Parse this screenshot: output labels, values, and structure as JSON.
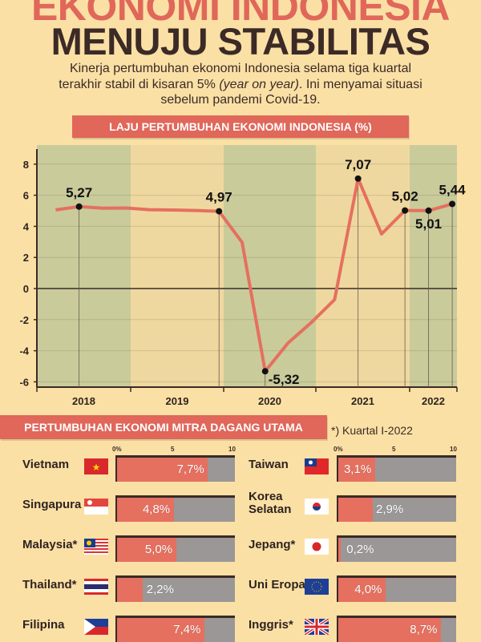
{
  "header": {
    "title_line1": "EKONOMI INDONESIA",
    "title_line2": "MENUJU STABILITAS",
    "subtitle_pre": "Kinerja pertumbuhan ekonomi Indonesia selama tiga kuartal terakhir stabil di kisaran 5% ",
    "subtitle_italic": "(year on year)",
    "subtitle_post": ". Ini menyamai situasi sebelum pandemi Covid-19."
  },
  "colors": {
    "background": "#fbe0a5",
    "accent": "#e0675a",
    "dark": "#3b2a26",
    "band_green": "#c9cb9b",
    "band_beige": "#efd89f",
    "bar_rest": "#9a9796"
  },
  "chart_data": {
    "type": "line",
    "title": "LAJU PERTUMBUHAN EKONOMI INDONESIA (%)",
    "years": [
      "2018",
      "2019",
      "2020",
      "2021",
      "2022"
    ],
    "quarters_per_year": [
      4,
      4,
      4,
      4,
      2
    ],
    "x": [
      "2018-Q1",
      "2018-Q2",
      "2018-Q3",
      "2018-Q4",
      "2019-Q1",
      "2019-Q2",
      "2019-Q3",
      "2019-Q4",
      "2020-Q1",
      "2020-Q2",
      "2020-Q3",
      "2020-Q4",
      "2021-Q1",
      "2021-Q2",
      "2021-Q3",
      "2021-Q4",
      "2022-Q1",
      "2022-Q2"
    ],
    "values": [
      5.06,
      5.27,
      5.17,
      5.18,
      5.07,
      5.05,
      5.02,
      4.97,
      2.97,
      -5.32,
      -3.49,
      -2.19,
      -0.71,
      7.07,
      3.51,
      5.02,
      5.01,
      5.44
    ],
    "labeled_points": [
      {
        "x": "2018-Q2",
        "label": "5,27",
        "pos": "above"
      },
      {
        "x": "2019-Q4",
        "label": "4,97",
        "pos": "above"
      },
      {
        "x": "2020-Q2",
        "label": "-5,32",
        "pos": "below-right"
      },
      {
        "x": "2021-Q2",
        "label": "7,07",
        "pos": "above"
      },
      {
        "x": "2021-Q4",
        "label": "5,02",
        "pos": "above"
      },
      {
        "x": "2022-Q1",
        "label": "5,01",
        "pos": "below"
      },
      {
        "x": "2022-Q2",
        "label": "5,44",
        "pos": "above"
      }
    ],
    "yticks": [
      8,
      6,
      4,
      2,
      0,
      -2,
      -4,
      -6
    ],
    "ylim": [
      -6.2,
      8.8
    ],
    "grid": true,
    "line_color": "#e5705f"
  },
  "partners": {
    "title": "PERTUMBUHAN EKONOMI MITRA DAGANG UTAMA",
    "note": "*) Kuartal I-2022",
    "scale": [
      "0%",
      "5",
      "10"
    ],
    "max": 10,
    "left": [
      {
        "name": "Vietnam",
        "value": 7.7,
        "label": "7,7%",
        "flag": "vn"
      },
      {
        "name": "Singapura",
        "value": 4.8,
        "label": "4,8%",
        "flag": "sg"
      },
      {
        "name": "Malaysia*",
        "value": 5.0,
        "label": "5,0%",
        "flag": "my"
      },
      {
        "name": "Thailand*",
        "value": 2.2,
        "label": "2,2%",
        "flag": "th"
      },
      {
        "name": "Filipina",
        "value": 7.4,
        "label": "7,4%",
        "flag": "ph"
      }
    ],
    "right": [
      {
        "name": "Taiwan",
        "value": 3.1,
        "label": "3,1%",
        "flag": "tw"
      },
      {
        "name": "Korea Selatan",
        "value": 2.9,
        "label": "2,9%",
        "flag": "kr"
      },
      {
        "name": "Jepang*",
        "value": 0.2,
        "label": "0,2%",
        "flag": "jp"
      },
      {
        "name": "Uni Eropa",
        "value": 4.0,
        "label": "4,0%",
        "flag": "eu"
      },
      {
        "name": "Inggris*",
        "value": 8.7,
        "label": "8,7%",
        "flag": "gb"
      }
    ]
  }
}
